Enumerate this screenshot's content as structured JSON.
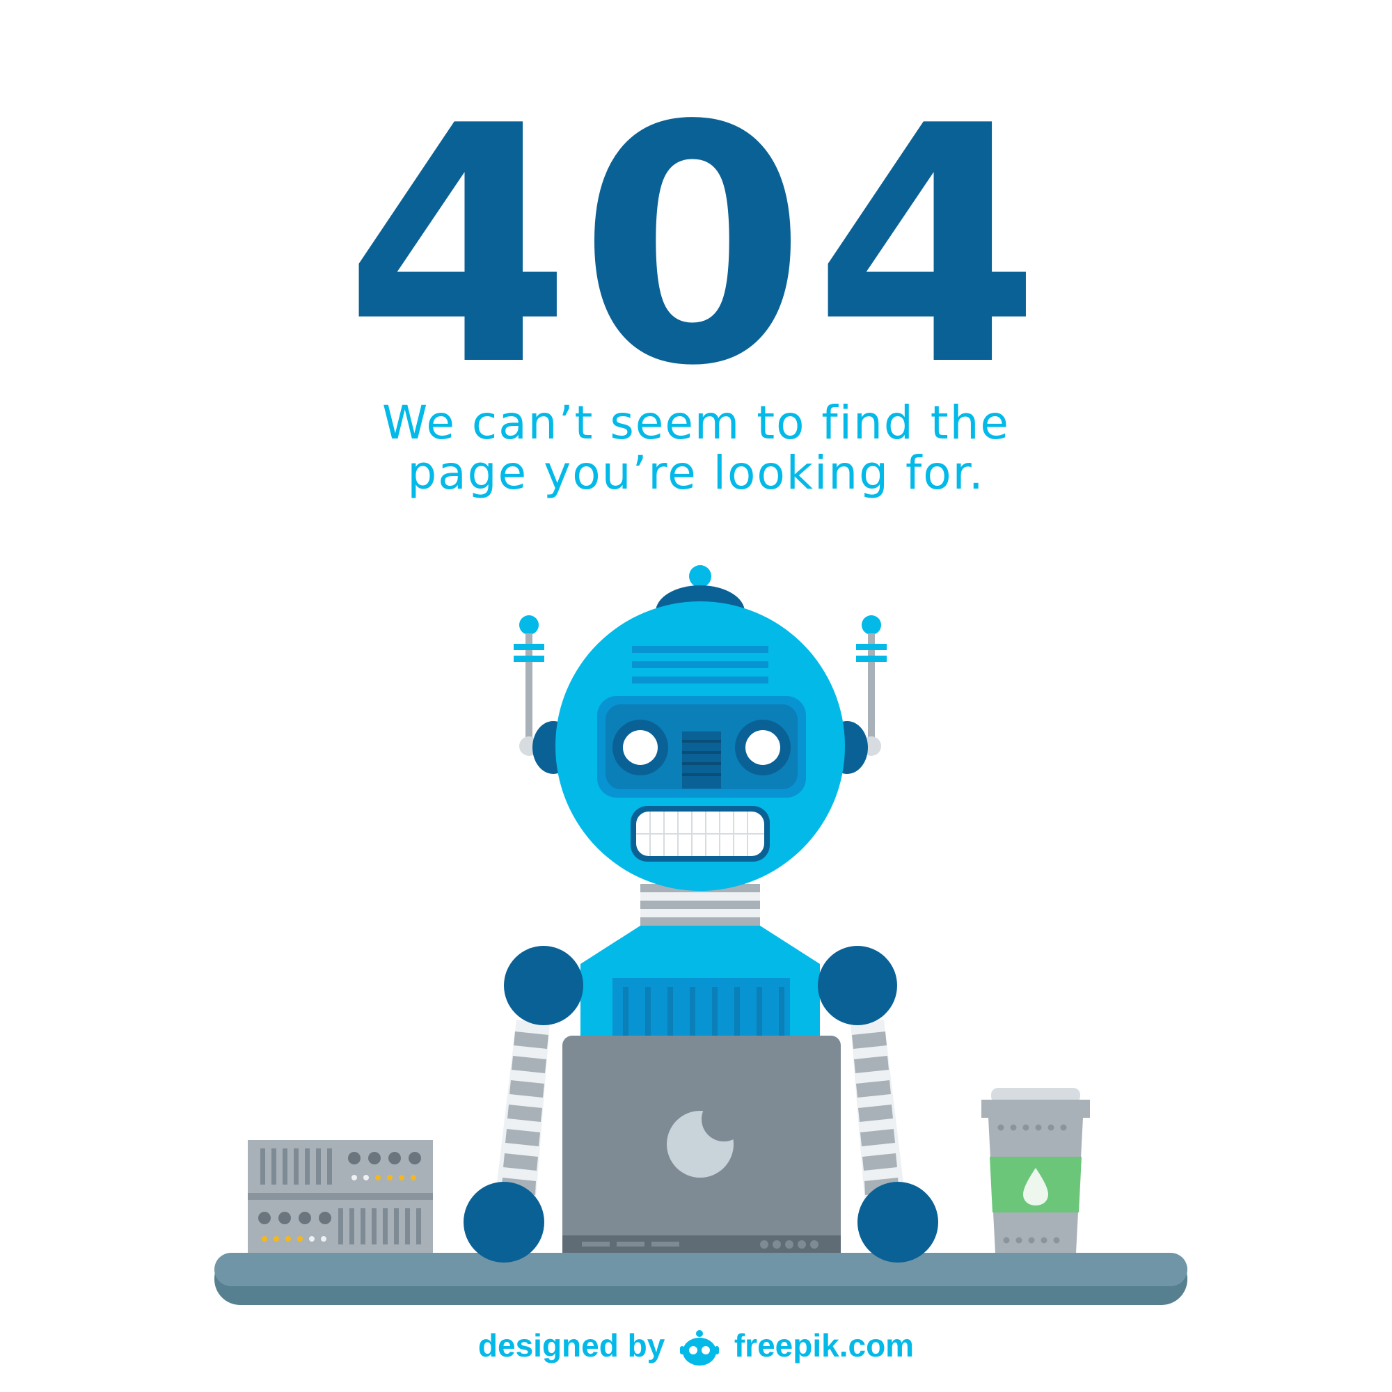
{
  "error": {
    "code": "404",
    "message_line1": "We can’t seem to find the",
    "message_line2": "page you’re looking for."
  },
  "credit": {
    "designed_by": "designed by",
    "site": "freepik.com"
  },
  "colors": {
    "dark_blue": "#0A6195",
    "cyan": "#02B9E8",
    "mid_blue": "#0894D2",
    "gray": "#A8B1B8",
    "laptop": "#7E8B95",
    "desk": "#6F95A7",
    "desk_shadow": "#567F8F",
    "green": "#6BC67A",
    "yellow": "#F5B71B"
  },
  "icons": {
    "robot": "robot-icon",
    "laptop": "laptop-icon",
    "server": "server-rack-icon",
    "cup": "coffee-cup-icon",
    "logo": "freepik-logo-icon"
  }
}
